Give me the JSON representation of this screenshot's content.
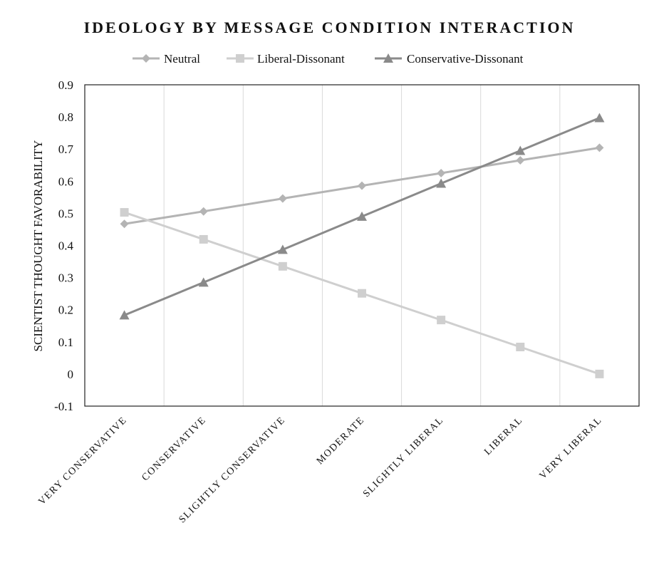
{
  "chart_data": {
    "type": "line",
    "title": "IDEOLOGY BY MESSAGE CONDITION INTERACTION",
    "xlabel": "",
    "ylabel": "SCIENTIST THOUGHT FAVORABILITY",
    "categories": [
      "VERY CONSERVATIVE",
      "CONSERVATIVE",
      "SLIGHTLY CONSERVATIVE",
      "MODERATE",
      "SLIGHTLY LIBERAL",
      "LIBERAL",
      "VERY LIBERAL"
    ],
    "ylim": [
      -0.1,
      0.9
    ],
    "yticks": [
      "-0.1",
      "0",
      "0.1",
      "0.2",
      "0.3",
      "0.4",
      "0.5",
      "0.6",
      "0.7",
      "0.8",
      "0.9"
    ],
    "grid": "vertical",
    "legend_position": "top",
    "series": [
      {
        "name": "Neutral",
        "marker": "diamond",
        "color": "#b4b4b4",
        "values": [
          0.467,
          0.506,
          0.546,
          0.586,
          0.625,
          0.665,
          0.704
        ]
      },
      {
        "name": "Liberal-Dissonant",
        "marker": "square",
        "color": "#cfcfcf",
        "values": [
          0.503,
          0.419,
          0.335,
          0.251,
          0.168,
          0.084,
          0.0
        ]
      },
      {
        "name": "Conservative-Dissonant",
        "marker": "triangle",
        "color": "#8a8a8a",
        "values": [
          0.183,
          0.285,
          0.387,
          0.49,
          0.593,
          0.695,
          0.797
        ]
      }
    ]
  }
}
